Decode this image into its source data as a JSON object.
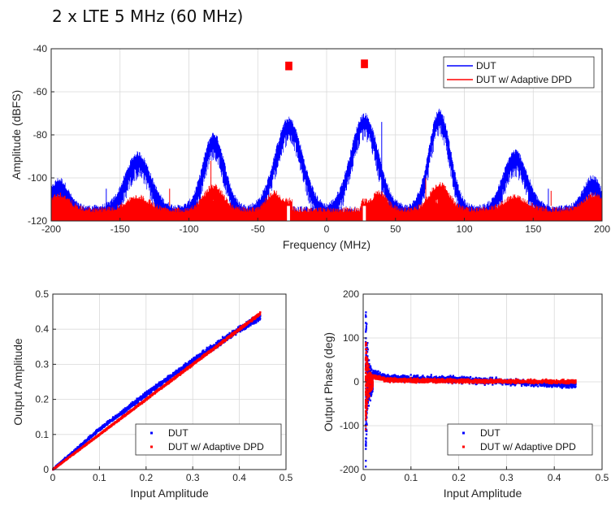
{
  "title": "2 x LTE 5 MHz (60 MHz)",
  "colors": {
    "series1": "#0000ff",
    "series2": "#ff0000",
    "grid": "#d9d9d9",
    "axis": "#262626"
  },
  "chart_data": [
    {
      "id": "spectrum",
      "type": "line",
      "xlabel": "Frequency (MHz)",
      "ylabel": "Amplitude (dBFS)",
      "xlim": [
        -200,
        200
      ],
      "ylim": [
        -120,
        -40
      ],
      "xticks": [
        -200,
        -150,
        -100,
        -50,
        0,
        50,
        100,
        150,
        200
      ],
      "yticks": [
        -120,
        -100,
        -80,
        -60,
        -40
      ],
      "grid": true,
      "legend_position": "top-right",
      "legend": [
        "DUT",
        "DUT w/ Adaptive DPD"
      ],
      "series": [
        {
          "name": "DUT",
          "floor": -115,
          "peaks": [
            {
              "center": -194,
              "level": -102,
              "halfwidth": 9
            },
            {
              "center": -137,
              "level": -90,
              "halfwidth": 13
            },
            {
              "center": -82,
              "level": -81,
              "halfwidth": 11
            },
            {
              "center": -27.5,
              "level": -74,
              "halfwidth": 14
            },
            {
              "center": 27.5,
              "level": -72,
              "halfwidth": 14
            },
            {
              "center": 82,
              "level": -70,
              "halfwidth": 11
            },
            {
              "center": 137,
              "level": -89,
              "halfwidth": 12
            },
            {
              "center": 193,
              "level": -101,
              "halfwidth": 9
            }
          ],
          "spurs": [
            {
              "x": -160,
              "level": -105
            },
            {
              "x": 40,
              "level": -74
            },
            {
              "x": 161,
              "level": -105
            }
          ]
        },
        {
          "name": "DUT w/ Adaptive DPD",
          "floor": -116,
          "peaks": [
            {
              "center": -194,
              "level": -109,
              "halfwidth": 10
            },
            {
              "center": -137,
              "level": -110,
              "halfwidth": 12
            },
            {
              "center": -82,
              "level": -105,
              "halfwidth": 10
            },
            {
              "center": -38,
              "level": -108,
              "halfwidth": 8
            },
            {
              "center": 38,
              "level": -108,
              "halfwidth": 8
            },
            {
              "center": 82,
              "level": -104,
              "halfwidth": 10
            },
            {
              "center": 137,
              "level": -110,
              "halfwidth": 12
            },
            {
              "center": 194,
              "level": -109,
              "halfwidth": 10
            }
          ],
          "carriers": [
            {
              "from": -30,
              "to": -25,
              "level": -46
            },
            {
              "from": 25,
              "to": 30,
              "level": -45
            }
          ],
          "spurs": [
            {
              "x": -114,
              "level": -105
            },
            {
              "x": -84,
              "level": -92
            },
            {
              "x": 72,
              "level": -100
            },
            {
              "x": 163,
              "level": -106
            }
          ]
        }
      ]
    },
    {
      "id": "amam",
      "type": "scatter",
      "xlabel": "Input Amplitude",
      "ylabel": "Output Amplitude",
      "xlim": [
        0,
        0.5
      ],
      "ylim": [
        0,
        0.5
      ],
      "xticks": [
        0,
        0.1,
        0.2,
        0.3,
        0.4,
        0.5
      ],
      "yticks": [
        0,
        0.1,
        0.2,
        0.3,
        0.4,
        0.5
      ],
      "grid": true,
      "legend_position": "bottom-right",
      "legend": [
        "DUT",
        "DUT w/ Adaptive DPD"
      ],
      "series": [
        {
          "name": "DUT",
          "points": [
            [
              0,
              0
            ],
            [
              0.1,
              0.115
            ],
            [
              0.2,
              0.215
            ],
            [
              0.3,
              0.31
            ],
            [
              0.4,
              0.4
            ],
            [
              0.445,
              0.435
            ]
          ],
          "spread": 0.012
        },
        {
          "name": "DUT w/ Adaptive DPD",
          "points": [
            [
              0,
              0
            ],
            [
              0.1,
              0.1
            ],
            [
              0.2,
              0.2
            ],
            [
              0.3,
              0.3
            ],
            [
              0.4,
              0.4
            ],
            [
              0.445,
              0.445
            ]
          ],
          "spread": 0.005
        }
      ]
    },
    {
      "id": "ampm",
      "type": "scatter",
      "xlabel": "Input Amplitude",
      "ylabel": "Output Phase (deg)",
      "xlim": [
        0,
        0.5
      ],
      "ylim": [
        -200,
        200
      ],
      "xticks": [
        0,
        0.1,
        0.2,
        0.3,
        0.4,
        0.5
      ],
      "yticks": [
        -200,
        -100,
        0,
        100,
        200
      ],
      "grid": true,
      "legend_position": "bottom-right",
      "legend": [
        "DUT",
        "DUT w/ Adaptive DPD"
      ],
      "series": [
        {
          "name": "DUT",
          "points": [
            [
              0.005,
              180
            ],
            [
              0.01,
              60
            ],
            [
              0.02,
              20
            ],
            [
              0.05,
              8
            ],
            [
              0.2,
              5
            ],
            [
              0.3,
              0
            ],
            [
              0.445,
              -8
            ]
          ],
          "spread": 10
        },
        {
          "name": "DUT w/ Adaptive DPD",
          "points": [
            [
              0.005,
              100
            ],
            [
              0.01,
              35
            ],
            [
              0.02,
              12
            ],
            [
              0.05,
              4
            ],
            [
              0.2,
              2
            ],
            [
              0.445,
              0
            ]
          ],
          "spread": 6
        }
      ]
    }
  ]
}
